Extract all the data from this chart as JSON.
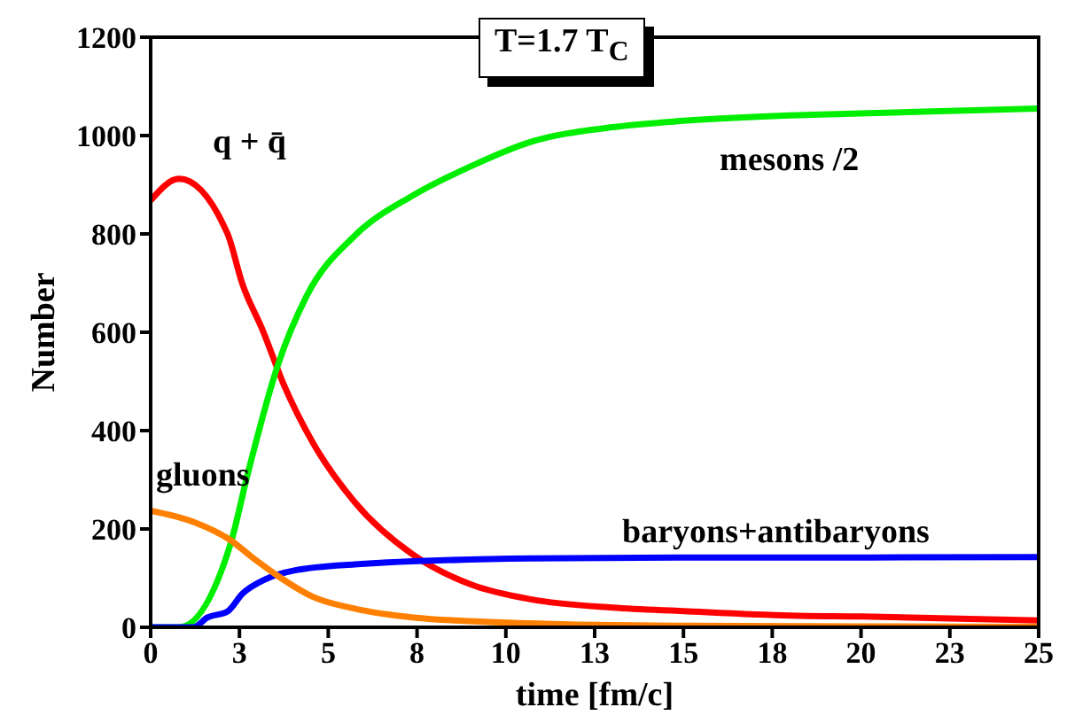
{
  "chart_data": {
    "type": "line",
    "title": "T=1.7 T$_{C}$",
    "xlabel": "time [fm/c]",
    "ylabel": "Number",
    "xlim": [
      0,
      25
    ],
    "xticks": [
      0,
      {
        "value": 2.5,
        "label": "3"
      },
      5,
      {
        "value": 7.5,
        "label": "8"
      },
      10,
      {
        "value": 12.5,
        "label": "13"
      },
      15,
      {
        "value": 17.5,
        "label": "18"
      },
      20,
      {
        "value": 22.5,
        "label": "23"
      },
      25
    ],
    "ylim": [
      0,
      1200
    ],
    "yticks": [
      0,
      200,
      400,
      600,
      800,
      1000,
      1200
    ],
    "legend": false,
    "marker": "none",
    "line_style": "solid",
    "series": [
      {
        "name": "q + q̄",
        "color": "#ff0000",
        "x": [
          0,
          0.8,
          2.16,
          2.58,
          3.16,
          3.74,
          4.57,
          5.74,
          7.4,
          9.06,
          10.7,
          13,
          15,
          18,
          20,
          25
        ],
        "values": [
          868,
          912,
          801,
          699,
          603,
          495,
          375,
          255,
          147,
          86,
          57,
          40,
          33,
          24,
          22,
          14
        ]
      },
      {
        "name": "mesons /2",
        "color": "#00ee00",
        "x": [
          0,
          0.8,
          2.25,
          2.74,
          3.57,
          4.4,
          5.74,
          7.4,
          9.06,
          10.7,
          13,
          15,
          18,
          20,
          25
        ],
        "values": [
          0,
          0,
          170,
          314,
          531,
          675,
          796,
          879,
          939,
          987,
          1017,
          1030,
          1041,
          1045,
          1055
        ]
      },
      {
        "name": "baryons+antibaryons",
        "color": "#0000ff",
        "x": [
          0,
          1.2,
          1.6,
          2.16,
          2.58,
          3.24,
          4.07,
          5.74,
          10.7,
          15,
          20,
          25
        ],
        "values": [
          0,
          0,
          20,
          32,
          68,
          98,
          116,
          128,
          140,
          142,
          142,
          143
        ]
      },
      {
        "name": "gluons",
        "color": "#ff8000",
        "x": [
          0,
          1.25,
          2.25,
          2.9,
          3.57,
          4.57,
          5.74,
          7.4,
          10.7,
          15,
          20,
          25
        ],
        "values": [
          237,
          213,
          177,
          140,
          105,
          62,
          38,
          20,
          8,
          3,
          2,
          1
        ]
      }
    ]
  }
}
